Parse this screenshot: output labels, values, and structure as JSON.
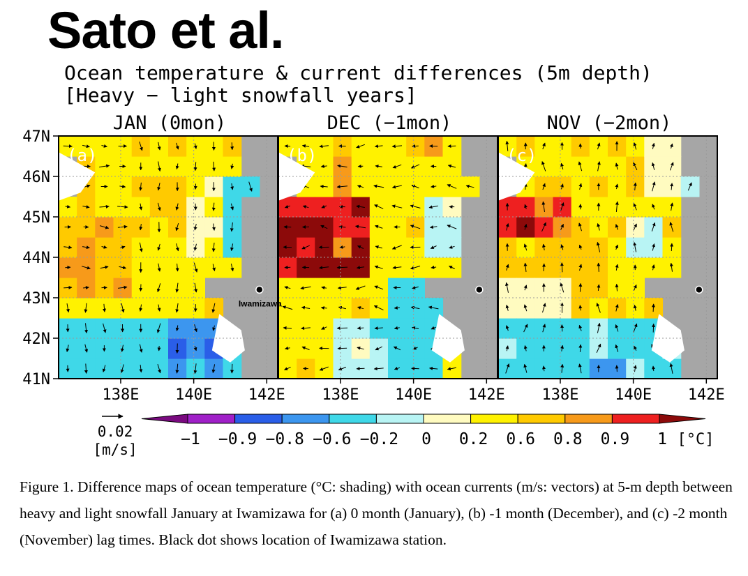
{
  "author_title": "Sato et al.",
  "figure": {
    "title_line1": "Ocean temperature & current differences (5m depth)",
    "title_line2": "[Heavy − light snowfall years]",
    "panels": [
      {
        "letter": "(a)",
        "label": "JAN (0mon)",
        "seed": 11
      },
      {
        "letter": "(b)",
        "label": "DEC (−1mon)",
        "seed": 23
      },
      {
        "letter": "(c)",
        "label": "NOV (−2mon)",
        "seed": 37
      }
    ],
    "lat_ticks": [
      "47N",
      "46N",
      "45N",
      "44N",
      "43N",
      "42N",
      "41N"
    ],
    "lon_ticks": [
      "138E",
      "140E",
      "142E"
    ],
    "station": {
      "name": "Iwamizawa",
      "lat": 43.2,
      "lon": 141.8
    },
    "colorbar": {
      "tick_labels": [
        "−1",
        "−0.9",
        "−0.8",
        "−0.6",
        "−0.2",
        "0",
        "0.2",
        "0.6",
        "0.8",
        "0.9",
        "1"
      ],
      "unit": "[°C]",
      "colors": [
        "#7a0a80",
        "#a020c8",
        "#2a5ee8",
        "#3c96ef",
        "#3fd8e8",
        "#b8f4f4",
        "#fffbc0",
        "#fff200",
        "#ffca00",
        "#f79a1a",
        "#ee2020",
        "#8c0a0a"
      ]
    },
    "vector_ref": {
      "value": "0.02",
      "unit": "[m/s]"
    }
  },
  "caption": "Figure 1. Difference maps of ocean temperature (°C: shading) with ocean currents (m/s: vectors) at 5-m depth between heavy and light snowfall January at Iwamizawa for (a) 0 month (January), (b) -1 month (December), and (c) -2 month (November) lag times. Black dot shows location of Iwamizawa station."
}
